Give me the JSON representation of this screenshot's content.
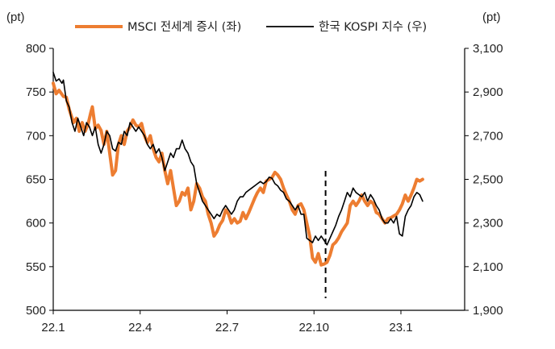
{
  "chart_data": {
    "type": "line",
    "left_unit": "(pt)",
    "right_unit": "(pt)",
    "legend_position": "top-center",
    "grid": false,
    "x_ticks": [
      {
        "label": "22.1",
        "t": 0
      },
      {
        "label": "22.4",
        "t": 3
      },
      {
        "label": "22.7",
        "t": 6
      },
      {
        "label": "22.10",
        "t": 9
      },
      {
        "label": "23.1",
        "t": 12
      }
    ],
    "x_range": [
      0,
      14.2
    ],
    "y_left": {
      "range": [
        500,
        800
      ],
      "ticks": [
        "800",
        "750",
        "700",
        "650",
        "600",
        "550",
        "500"
      ]
    },
    "y_right": {
      "range": [
        1900,
        3100
      ],
      "ticks": [
        "3,100",
        "2,900",
        "2,700",
        "2,500",
        "2,300",
        "2,100",
        "1,900"
      ]
    },
    "marker_line_t": 9.4,
    "series": [
      {
        "name": "MSCI 전세계 증시 (좌)",
        "axis": "left",
        "color": "#ED7D31",
        "points": [
          [
            0,
            760
          ],
          [
            0.1,
            748
          ],
          [
            0.2,
            752
          ],
          [
            0.35,
            745
          ],
          [
            0.45,
            744
          ],
          [
            0.55,
            730
          ],
          [
            0.7,
            715
          ],
          [
            0.8,
            720
          ],
          [
            0.9,
            705
          ],
          [
            1,
            715
          ],
          [
            1.1,
            705
          ],
          [
            1.2,
            713
          ],
          [
            1.3,
            727
          ],
          [
            1.35,
            733
          ],
          [
            1.45,
            708
          ],
          [
            1.55,
            712
          ],
          [
            1.65,
            706
          ],
          [
            1.75,
            690
          ],
          [
            1.85,
            705
          ],
          [
            1.95,
            680
          ],
          [
            2.05,
            655
          ],
          [
            2.15,
            660
          ],
          [
            2.25,
            690
          ],
          [
            2.35,
            700
          ],
          [
            2.45,
            690
          ],
          [
            2.55,
            705
          ],
          [
            2.65,
            710
          ],
          [
            2.75,
            718
          ],
          [
            2.85,
            712
          ],
          [
            2.95,
            710
          ],
          [
            3.05,
            714
          ],
          [
            3.15,
            700
          ],
          [
            3.25,
            692
          ],
          [
            3.35,
            700
          ],
          [
            3.45,
            685
          ],
          [
            3.55,
            675
          ],
          [
            3.65,
            670
          ],
          [
            3.75,
            680
          ],
          [
            3.85,
            660
          ],
          [
            3.95,
            645
          ],
          [
            4.05,
            660
          ],
          [
            4.15,
            640
          ],
          [
            4.25,
            620
          ],
          [
            4.35,
            625
          ],
          [
            4.45,
            635
          ],
          [
            4.55,
            632
          ],
          [
            4.65,
            640
          ],
          [
            4.75,
            615
          ],
          [
            4.85,
            625
          ],
          [
            4.95,
            645
          ],
          [
            5.05,
            640
          ],
          [
            5.15,
            630
          ],
          [
            5.25,
            625
          ],
          [
            5.35,
            610
          ],
          [
            5.45,
            600
          ],
          [
            5.55,
            585
          ],
          [
            5.65,
            590
          ],
          [
            5.75,
            598
          ],
          [
            5.85,
            603
          ],
          [
            5.95,
            615
          ],
          [
            6.05,
            610
          ],
          [
            6.15,
            600
          ],
          [
            6.25,
            605
          ],
          [
            6.35,
            600
          ],
          [
            6.45,
            602
          ],
          [
            6.55,
            612
          ],
          [
            6.65,
            605
          ],
          [
            6.75,
            612
          ],
          [
            6.85,
            620
          ],
          [
            6.95,
            628
          ],
          [
            7.05,
            635
          ],
          [
            7.15,
            640
          ],
          [
            7.25,
            635
          ],
          [
            7.35,
            648
          ],
          [
            7.45,
            650
          ],
          [
            7.55,
            652
          ],
          [
            7.65,
            658
          ],
          [
            7.75,
            655
          ],
          [
            7.85,
            650
          ],
          [
            7.95,
            640
          ],
          [
            8.05,
            632
          ],
          [
            8.15,
            625
          ],
          [
            8.25,
            615
          ],
          [
            8.35,
            610
          ],
          [
            8.45,
            620
          ],
          [
            8.55,
            622
          ],
          [
            8.65,
            615
          ],
          [
            8.75,
            600
          ],
          [
            8.85,
            585
          ],
          [
            8.95,
            560
          ],
          [
            9.05,
            555
          ],
          [
            9.15,
            565
          ],
          [
            9.25,
            552
          ],
          [
            9.35,
            553
          ],
          [
            9.45,
            555
          ],
          [
            9.55,
            563
          ],
          [
            9.65,
            575
          ],
          [
            9.75,
            578
          ],
          [
            9.85,
            583
          ],
          [
            9.95,
            590
          ],
          [
            10.05,
            595
          ],
          [
            10.15,
            600
          ],
          [
            10.25,
            620
          ],
          [
            10.35,
            625
          ],
          [
            10.45,
            620
          ],
          [
            10.55,
            625
          ],
          [
            10.65,
            632
          ],
          [
            10.75,
            625
          ],
          [
            10.85,
            620
          ],
          [
            10.95,
            625
          ],
          [
            11.05,
            622
          ],
          [
            11.15,
            612
          ],
          [
            11.25,
            610
          ],
          [
            11.35,
            605
          ],
          [
            11.45,
            600
          ],
          [
            11.55,
            605
          ],
          [
            11.65,
            606
          ],
          [
            11.75,
            608
          ],
          [
            11.85,
            610
          ],
          [
            11.95,
            615
          ],
          [
            12.05,
            622
          ],
          [
            12.15,
            632
          ],
          [
            12.25,
            625
          ],
          [
            12.35,
            632
          ],
          [
            12.45,
            640
          ],
          [
            12.55,
            650
          ],
          [
            12.65,
            648
          ],
          [
            12.75,
            650
          ]
        ]
      },
      {
        "name": "한국 KOSPI 지수 (우)",
        "axis": "right",
        "color": "#000000",
        "points": [
          [
            0,
            2990
          ],
          [
            0.1,
            2950
          ],
          [
            0.2,
            2960
          ],
          [
            0.3,
            2940
          ],
          [
            0.35,
            2955
          ],
          [
            0.45,
            2860
          ],
          [
            0.55,
            2830
          ],
          [
            0.65,
            2760
          ],
          [
            0.75,
            2720
          ],
          [
            0.85,
            2780
          ],
          [
            0.95,
            2740
          ],
          [
            1.05,
            2700
          ],
          [
            1.15,
            2760
          ],
          [
            1.25,
            2740
          ],
          [
            1.35,
            2700
          ],
          [
            1.45,
            2740
          ],
          [
            1.55,
            2660
          ],
          [
            1.65,
            2620
          ],
          [
            1.75,
            2660
          ],
          [
            1.85,
            2720
          ],
          [
            1.95,
            2700
          ],
          [
            2.05,
            2640
          ],
          [
            2.15,
            2630
          ],
          [
            2.25,
            2670
          ],
          [
            2.35,
            2660
          ],
          [
            2.45,
            2720
          ],
          [
            2.55,
            2700
          ],
          [
            2.65,
            2760
          ],
          [
            2.75,
            2740
          ],
          [
            2.85,
            2720
          ],
          [
            2.95,
            2740
          ],
          [
            3.05,
            2720
          ],
          [
            3.15,
            2700
          ],
          [
            3.25,
            2660
          ],
          [
            3.35,
            2640
          ],
          [
            3.45,
            2660
          ],
          [
            3.55,
            2620
          ],
          [
            3.65,
            2640
          ],
          [
            3.75,
            2600
          ],
          [
            3.85,
            2540
          ],
          [
            3.95,
            2580
          ],
          [
            4.05,
            2620
          ],
          [
            4.15,
            2600
          ],
          [
            4.25,
            2640
          ],
          [
            4.35,
            2640
          ],
          [
            4.45,
            2680
          ],
          [
            4.55,
            2640
          ],
          [
            4.65,
            2620
          ],
          [
            4.75,
            2580
          ],
          [
            4.85,
            2560
          ],
          [
            4.95,
            2480
          ],
          [
            5.05,
            2440
          ],
          [
            5.15,
            2400
          ],
          [
            5.25,
            2380
          ],
          [
            5.35,
            2360
          ],
          [
            5.45,
            2340
          ],
          [
            5.55,
            2320
          ],
          [
            5.65,
            2340
          ],
          [
            5.75,
            2330
          ],
          [
            5.85,
            2360
          ],
          [
            5.95,
            2380
          ],
          [
            6.05,
            2360
          ],
          [
            6.15,
            2340
          ],
          [
            6.25,
            2360
          ],
          [
            6.35,
            2400
          ],
          [
            6.45,
            2420
          ],
          [
            6.55,
            2420
          ],
          [
            6.65,
            2440
          ],
          [
            6.75,
            2450
          ],
          [
            6.85,
            2460
          ],
          [
            6.95,
            2470
          ],
          [
            7.05,
            2480
          ],
          [
            7.15,
            2490
          ],
          [
            7.25,
            2480
          ],
          [
            7.35,
            2490
          ],
          [
            7.45,
            2510
          ],
          [
            7.55,
            2505
          ],
          [
            7.65,
            2480
          ],
          [
            7.75,
            2470
          ],
          [
            7.85,
            2450
          ],
          [
            7.95,
            2440
          ],
          [
            8.05,
            2410
          ],
          [
            8.15,
            2400
          ],
          [
            8.25,
            2380
          ],
          [
            8.35,
            2360
          ],
          [
            8.45,
            2380
          ],
          [
            8.55,
            2340
          ],
          [
            8.65,
            2340
          ],
          [
            8.75,
            2230
          ],
          [
            8.85,
            2220
          ],
          [
            8.95,
            2210
          ],
          [
            9.05,
            2240
          ],
          [
            9.15,
            2220
          ],
          [
            9.25,
            2240
          ],
          [
            9.35,
            2220
          ],
          [
            9.45,
            2200
          ],
          [
            9.55,
            2230
          ],
          [
            9.65,
            2260
          ],
          [
            9.75,
            2290
          ],
          [
            9.85,
            2330
          ],
          [
            9.95,
            2360
          ],
          [
            10.05,
            2400
          ],
          [
            10.15,
            2440
          ],
          [
            10.25,
            2420
          ],
          [
            10.35,
            2460
          ],
          [
            10.45,
            2440
          ],
          [
            10.55,
            2430
          ],
          [
            10.65,
            2420
          ],
          [
            10.75,
            2440
          ],
          [
            10.85,
            2400
          ],
          [
            10.95,
            2430
          ],
          [
            11.05,
            2410
          ],
          [
            11.15,
            2380
          ],
          [
            11.25,
            2360
          ],
          [
            11.35,
            2320
          ],
          [
            11.45,
            2300
          ],
          [
            11.55,
            2300
          ],
          [
            11.65,
            2320
          ],
          [
            11.75,
            2300
          ],
          [
            11.85,
            2330
          ],
          [
            11.95,
            2250
          ],
          [
            12.05,
            2240
          ],
          [
            12.15,
            2330
          ],
          [
            12.25,
            2360
          ],
          [
            12.35,
            2380
          ],
          [
            12.45,
            2420
          ],
          [
            12.55,
            2440
          ],
          [
            12.65,
            2430
          ],
          [
            12.75,
            2400
          ]
        ]
      }
    ]
  }
}
